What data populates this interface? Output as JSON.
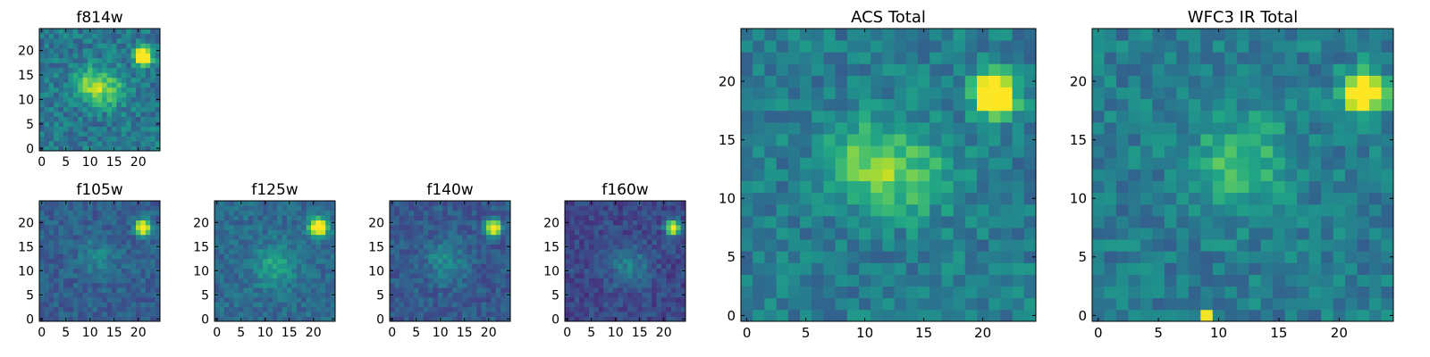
{
  "chart_data": [
    {
      "type": "heatmap",
      "title": "f814w",
      "grid_size": [
        25,
        25
      ],
      "xlim": [
        -0.5,
        24.5
      ],
      "ylim": [
        -0.5,
        24.5
      ],
      "xticks": [
        0,
        5,
        10,
        15,
        20
      ],
      "yticks": [
        0,
        5,
        10,
        15,
        20
      ],
      "colormap": "viridis",
      "sources": [
        {
          "x": 21,
          "y": 19,
          "peak": 1.0,
          "sigma": 1.2
        },
        {
          "x": 10,
          "y": 13,
          "peak": 0.35,
          "sigma": 2.5
        },
        {
          "x": 14,
          "y": 12,
          "peak": 0.3,
          "sigma": 2.5
        }
      ],
      "background": 0.4,
      "noise": 0.13,
      "seed": 7
    },
    {
      "type": "heatmap",
      "title": "f105w",
      "grid_size": [
        25,
        25
      ],
      "xlim": [
        -0.5,
        24.5
      ],
      "ylim": [
        -0.5,
        24.5
      ],
      "xticks": [
        0,
        5,
        10,
        15,
        20
      ],
      "yticks": [
        0,
        5,
        10,
        15,
        20
      ],
      "colormap": "viridis",
      "sources": [
        {
          "x": 21,
          "y": 19,
          "peak": 0.95,
          "sigma": 1.1
        },
        {
          "x": 12,
          "y": 13,
          "peak": 0.15,
          "sigma": 3
        }
      ],
      "background": 0.3,
      "noise": 0.09,
      "seed": 11
    },
    {
      "type": "heatmap",
      "title": "f125w",
      "grid_size": [
        25,
        25
      ],
      "xlim": [
        -0.5,
        24.5
      ],
      "ylim": [
        -0.5,
        24.5
      ],
      "xticks": [
        0,
        5,
        10,
        15,
        20
      ],
      "yticks": [
        0,
        5,
        10,
        15,
        20
      ],
      "colormap": "viridis",
      "sources": [
        {
          "x": 21,
          "y": 19,
          "peak": 0.9,
          "sigma": 1.3
        },
        {
          "x": 12,
          "y": 11,
          "peak": 0.25,
          "sigma": 3
        }
      ],
      "background": 0.35,
      "noise": 0.09,
      "seed": 23
    },
    {
      "type": "heatmap",
      "title": "f140w",
      "grid_size": [
        25,
        25
      ],
      "xlim": [
        -0.5,
        24.5
      ],
      "ylim": [
        -0.5,
        24.5
      ],
      "xticks": [
        0,
        5,
        10,
        15,
        20
      ],
      "yticks": [
        0,
        5,
        10,
        15,
        20
      ],
      "colormap": "viridis",
      "sources": [
        {
          "x": 21,
          "y": 19,
          "peak": 0.95,
          "sigma": 1.1
        },
        {
          "x": 11,
          "y": 12,
          "peak": 0.2,
          "sigma": 3
        }
      ],
      "background": 0.28,
      "noise": 0.09,
      "seed": 31
    },
    {
      "type": "heatmap",
      "title": "f160w",
      "grid_size": [
        25,
        25
      ],
      "xlim": [
        -0.5,
        24.5
      ],
      "ylim": [
        -0.5,
        24.5
      ],
      "xticks": [
        0,
        5,
        10,
        15,
        20
      ],
      "yticks": [
        0,
        5,
        10,
        15,
        20
      ],
      "colormap": "viridis",
      "sources": [
        {
          "x": 22,
          "y": 19,
          "peak": 1.0,
          "sigma": 1.0
        },
        {
          "x": 13,
          "y": 11,
          "peak": 0.22,
          "sigma": 3
        }
      ],
      "background": 0.22,
      "noise": 0.09,
      "seed": 47
    },
    {
      "type": "heatmap",
      "title": "ACS Total",
      "grid_size": [
        25,
        25
      ],
      "xlim": [
        -0.5,
        24.5
      ],
      "ylim": [
        -0.5,
        24.5
      ],
      "xticks": [
        0,
        5,
        10,
        15,
        20
      ],
      "yticks": [
        0,
        5,
        10,
        15,
        20
      ],
      "colormap": "viridis",
      "sources": [
        {
          "x": 21,
          "y": 19,
          "peak": 1.0,
          "sigma": 1.2
        },
        {
          "x": 10,
          "y": 13,
          "peak": 0.3,
          "sigma": 2.5
        },
        {
          "x": 14,
          "y": 12,
          "peak": 0.25,
          "sigma": 2.5
        }
      ],
      "background": 0.42,
      "noise": 0.12,
      "seed": 7
    },
    {
      "type": "heatmap",
      "title": "WFC3 IR Total",
      "grid_size": [
        25,
        25
      ],
      "xlim": [
        -0.5,
        24.5
      ],
      "ylim": [
        -0.5,
        24.5
      ],
      "xticks": [
        0,
        5,
        10,
        15,
        20
      ],
      "yticks": [
        0,
        5,
        10,
        15,
        20
      ],
      "colormap": "viridis",
      "sources": [
        {
          "x": 22,
          "y": 19,
          "peak": 1.0,
          "sigma": 1.2
        },
        {
          "x": 12,
          "y": 13,
          "peak": 0.28,
          "sigma": 2.8
        },
        {
          "x": 9,
          "y": 0,
          "peak": 0.45,
          "sigma": 0.35
        }
      ],
      "background": 0.42,
      "noise": 0.12,
      "seed": 59
    }
  ]
}
